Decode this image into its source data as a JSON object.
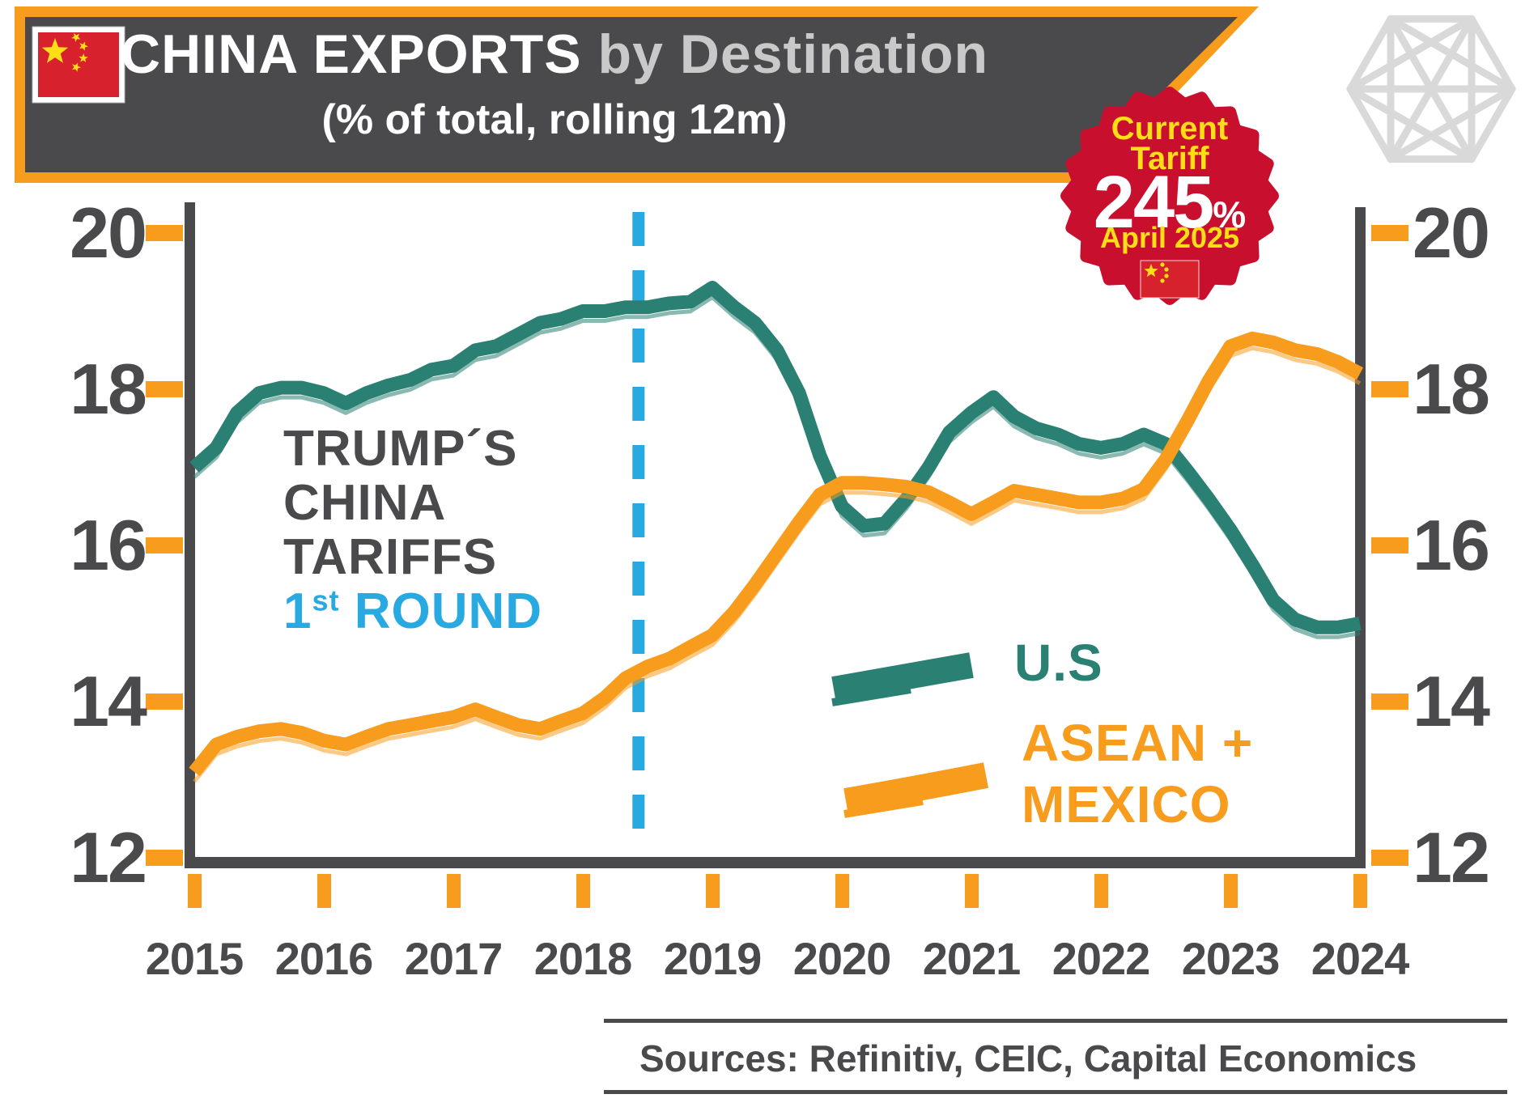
{
  "header": {
    "title_main": "CHINA EXPORTS",
    "title_rest": "by Destination",
    "subtitle": "(% of total, rolling 12m)"
  },
  "badge": {
    "top1": "Current",
    "top2": "Tariff",
    "value": "245",
    "unit": "%",
    "date": "April 2025"
  },
  "annotation": {
    "line1": "TRUMP´S",
    "line2": "CHINA",
    "line3": "TARIFFS",
    "round_number": "1",
    "round_sup": "st",
    "round_text": " ROUND"
  },
  "legend": {
    "us_label": "U.S",
    "asean_line1": "ASEAN +",
    "asean_line2": "MEXICO"
  },
  "sources_text": "Sources: Refinitiv, CEIC, Capital Economics",
  "colors": {
    "teal": "#2A8072",
    "orange": "#F89C1E",
    "blue": "#29A9E1",
    "dark": "#4A4A4C",
    "light_text": "#C9C9C9",
    "badge_red": "#C8102E",
    "flag_red": "#D7212D",
    "star_yellow": "#FFDE17",
    "logo_gray": "#D9D9D9",
    "white": "#FFFFFF"
  },
  "chart_data": {
    "type": "line",
    "title": "CHINA EXPORTS by Destination",
    "subtitle": "(% of total, rolling 12m)",
    "ylim": [
      12,
      20
    ],
    "xlim": [
      2015,
      2024
    ],
    "grid": false,
    "legend_position": "right-middle",
    "y_axis": {
      "tick_values": [
        20,
        18,
        16,
        14,
        12
      ],
      "tick_labels": [
        "20",
        "18",
        "16",
        "14",
        "12"
      ],
      "sides": [
        "left",
        "right"
      ]
    },
    "x_axis": {
      "tick_values": [
        2015,
        2016,
        2017,
        2018,
        2019,
        2020,
        2021,
        2022,
        2023,
        2024
      ],
      "tick_labels": [
        "2015",
        "2016",
        "2017",
        "2018",
        "2019",
        "2020",
        "2021",
        "2022",
        "2023",
        "2024"
      ]
    },
    "event_line": {
      "x": 2018.43,
      "label": "Trump´s China tariffs 1st round",
      "style": "dashed",
      "color_key": "blue"
    },
    "series": [
      {
        "name": "U.S",
        "color_key": "teal",
        "points": [
          [
            2015.0,
            17.0
          ],
          [
            2015.17,
            17.25
          ],
          [
            2015.33,
            17.7
          ],
          [
            2015.5,
            17.95
          ],
          [
            2015.67,
            18.02
          ],
          [
            2015.83,
            18.02
          ],
          [
            2016.0,
            17.95
          ],
          [
            2016.17,
            17.82
          ],
          [
            2016.33,
            17.95
          ],
          [
            2016.5,
            18.05
          ],
          [
            2016.67,
            18.12
          ],
          [
            2016.83,
            18.25
          ],
          [
            2017.0,
            18.3
          ],
          [
            2017.17,
            18.5
          ],
          [
            2017.33,
            18.55
          ],
          [
            2017.5,
            18.7
          ],
          [
            2017.67,
            18.85
          ],
          [
            2017.83,
            18.9
          ],
          [
            2018.0,
            19.0
          ],
          [
            2018.17,
            19.0
          ],
          [
            2018.33,
            19.05
          ],
          [
            2018.5,
            19.05
          ],
          [
            2018.67,
            19.1
          ],
          [
            2018.83,
            19.12
          ],
          [
            2019.0,
            19.3
          ],
          [
            2019.17,
            19.05
          ],
          [
            2019.33,
            18.85
          ],
          [
            2019.5,
            18.5
          ],
          [
            2019.67,
            17.95
          ],
          [
            2019.83,
            17.15
          ],
          [
            2020.0,
            16.5
          ],
          [
            2020.17,
            16.25
          ],
          [
            2020.33,
            16.28
          ],
          [
            2020.5,
            16.6
          ],
          [
            2020.67,
            17.0
          ],
          [
            2020.83,
            17.45
          ],
          [
            2021.0,
            17.7
          ],
          [
            2021.17,
            17.9
          ],
          [
            2021.33,
            17.65
          ],
          [
            2021.5,
            17.5
          ],
          [
            2021.67,
            17.42
          ],
          [
            2021.83,
            17.3
          ],
          [
            2022.0,
            17.25
          ],
          [
            2022.17,
            17.3
          ],
          [
            2022.33,
            17.42
          ],
          [
            2022.5,
            17.3
          ],
          [
            2022.67,
            16.95
          ],
          [
            2022.83,
            16.6
          ],
          [
            2023.0,
            16.2
          ],
          [
            2023.17,
            15.75
          ],
          [
            2023.33,
            15.3
          ],
          [
            2023.5,
            15.05
          ],
          [
            2023.67,
            14.95
          ],
          [
            2023.83,
            14.95
          ],
          [
            2024.0,
            15.0
          ]
        ]
      },
      {
        "name": "ASEAN + MEXICO",
        "color_key": "orange",
        "points": [
          [
            2015.0,
            13.1
          ],
          [
            2015.17,
            13.45
          ],
          [
            2015.33,
            13.55
          ],
          [
            2015.5,
            13.62
          ],
          [
            2015.67,
            13.65
          ],
          [
            2015.83,
            13.6
          ],
          [
            2016.0,
            13.5
          ],
          [
            2016.17,
            13.45
          ],
          [
            2016.33,
            13.55
          ],
          [
            2016.5,
            13.65
          ],
          [
            2016.67,
            13.7
          ],
          [
            2016.83,
            13.75
          ],
          [
            2017.0,
            13.8
          ],
          [
            2017.17,
            13.9
          ],
          [
            2017.33,
            13.8
          ],
          [
            2017.5,
            13.7
          ],
          [
            2017.67,
            13.65
          ],
          [
            2017.83,
            13.75
          ],
          [
            2018.0,
            13.85
          ],
          [
            2018.17,
            14.05
          ],
          [
            2018.33,
            14.3
          ],
          [
            2018.5,
            14.45
          ],
          [
            2018.67,
            14.55
          ],
          [
            2018.83,
            14.7
          ],
          [
            2019.0,
            14.85
          ],
          [
            2019.17,
            15.15
          ],
          [
            2019.33,
            15.5
          ],
          [
            2019.5,
            15.9
          ],
          [
            2019.67,
            16.3
          ],
          [
            2019.83,
            16.65
          ],
          [
            2020.0,
            16.8
          ],
          [
            2020.17,
            16.8
          ],
          [
            2020.33,
            16.78
          ],
          [
            2020.5,
            16.75
          ],
          [
            2020.67,
            16.68
          ],
          [
            2020.83,
            16.55
          ],
          [
            2021.0,
            16.4
          ],
          [
            2021.17,
            16.55
          ],
          [
            2021.33,
            16.7
          ],
          [
            2021.5,
            16.65
          ],
          [
            2021.67,
            16.6
          ],
          [
            2021.83,
            16.55
          ],
          [
            2022.0,
            16.55
          ],
          [
            2022.17,
            16.6
          ],
          [
            2022.33,
            16.72
          ],
          [
            2022.5,
            17.1
          ],
          [
            2022.67,
            17.6
          ],
          [
            2022.83,
            18.1
          ],
          [
            2023.0,
            18.55
          ],
          [
            2023.17,
            18.65
          ],
          [
            2023.33,
            18.6
          ],
          [
            2023.5,
            18.5
          ],
          [
            2023.67,
            18.45
          ],
          [
            2023.83,
            18.35
          ],
          [
            2024.0,
            18.2
          ]
        ]
      }
    ]
  }
}
